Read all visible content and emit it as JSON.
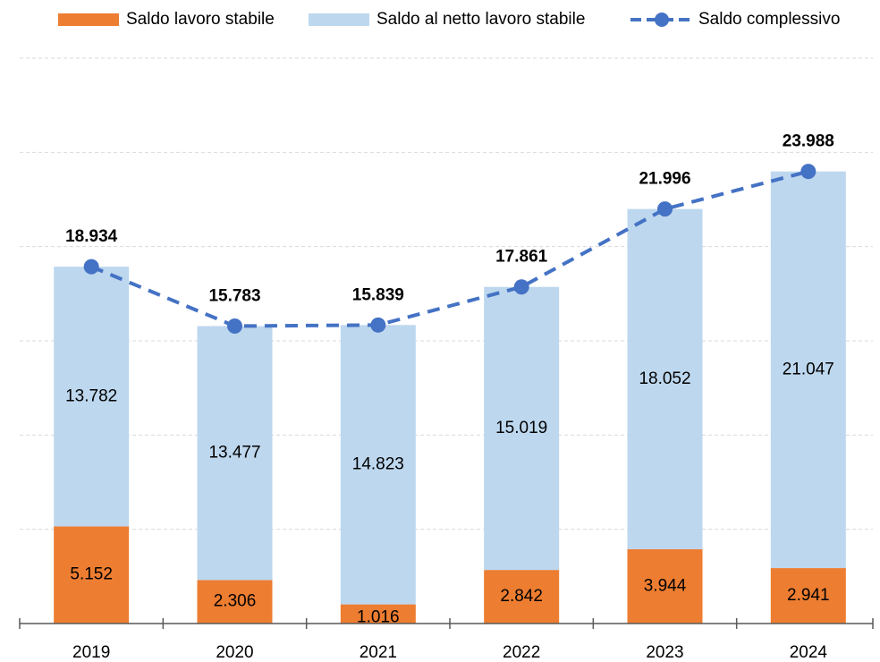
{
  "chart_data": {
    "type": "bar_line",
    "categories": [
      "2019",
      "2020",
      "2021",
      "2022",
      "2023",
      "2024"
    ],
    "series": [
      {
        "name": "Saldo lavoro stabile",
        "type": "bar",
        "color": "#ed7d31",
        "values": [
          5152,
          2306,
          1016,
          2842,
          3944,
          2941
        ],
        "value_labels": [
          "5.152",
          "2.306",
          "1.016",
          "2.842",
          "3.944",
          "2.941"
        ]
      },
      {
        "name": "Saldo al netto lavoro stabile",
        "type": "bar",
        "color": "#bdd7ee",
        "values": [
          13782,
          13477,
          14823,
          15019,
          18052,
          21047
        ],
        "value_labels": [
          "13.782",
          "13.477",
          "14.823",
          "15.019",
          "18.052",
          "21.047"
        ]
      },
      {
        "name": "Saldo complessivo",
        "type": "line",
        "color": "#4472c4",
        "values": [
          18934,
          15783,
          15839,
          17861,
          21996,
          23988
        ],
        "value_labels": [
          "18.934",
          "15.783",
          "15.839",
          "17.861",
          "21.996",
          "23.988"
        ]
      }
    ],
    "ylim": [
      0,
      30000
    ],
    "yticks": [
      0,
      5000,
      10000,
      15000,
      20000,
      25000,
      30000
    ],
    "grid": true,
    "stacked": true,
    "legend": "top"
  }
}
